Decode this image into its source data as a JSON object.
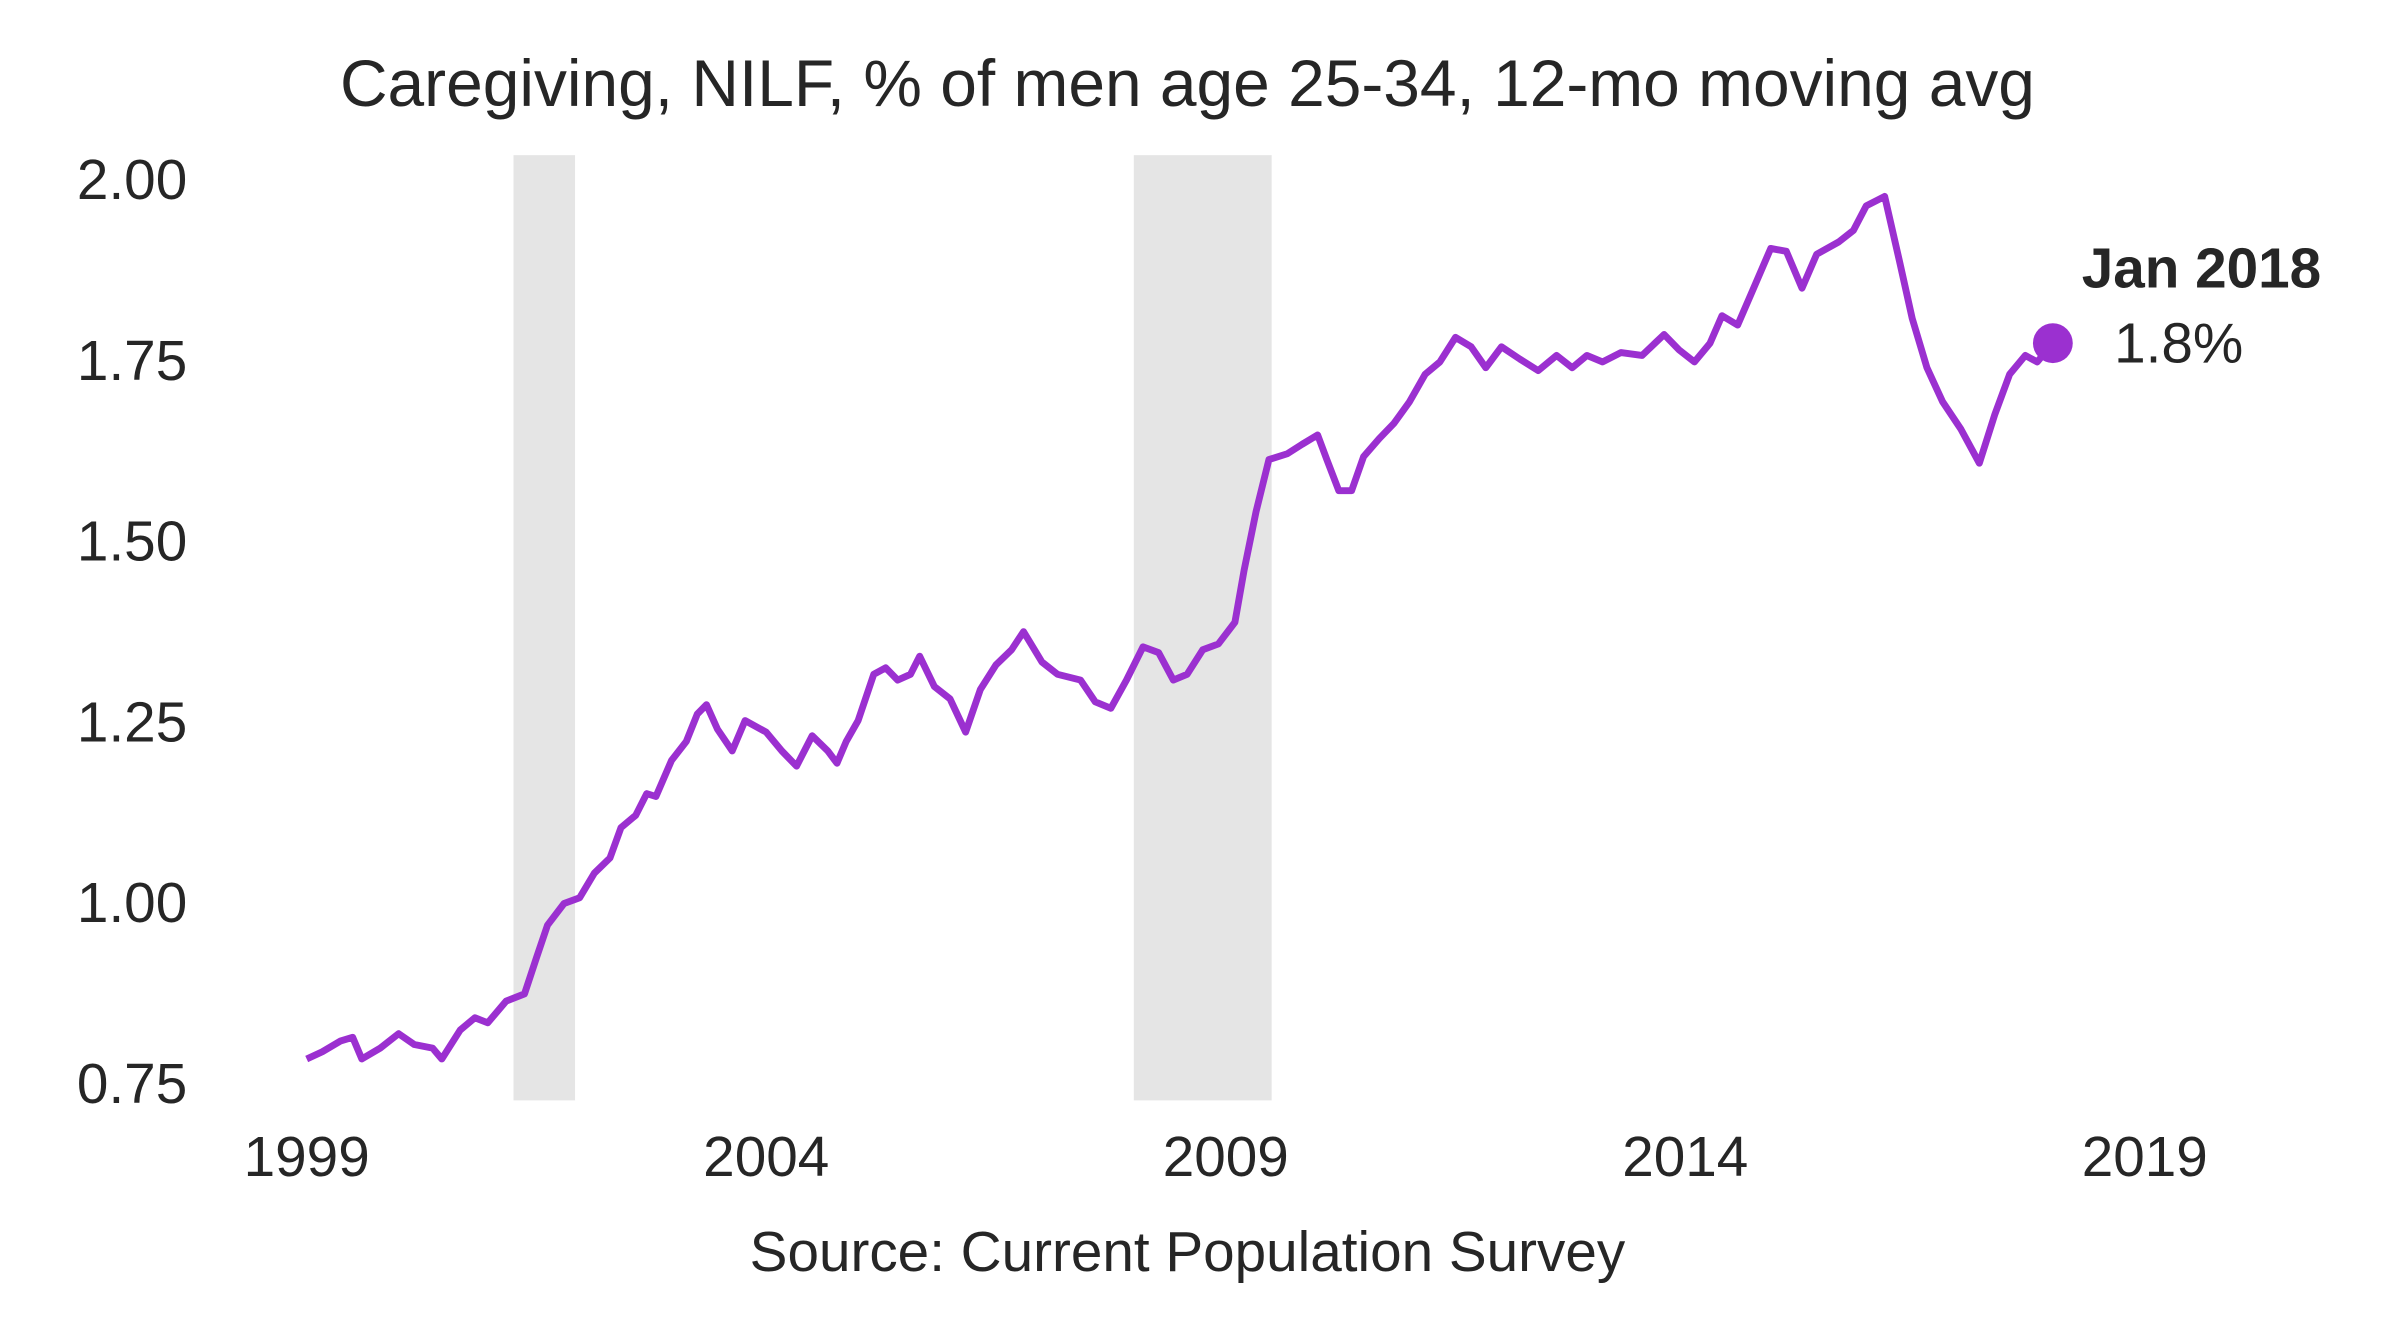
{
  "chart_data": {
    "type": "line",
    "title": "Caregiving, NILF, % of men age 25-34, 12-mo moving avg",
    "x_label": "Source: Current Population Survey",
    "color": "#9b30d0",
    "shade_color": "#e5e5e5",
    "shaded_regions": [
      [
        2001.25,
        2001.92
      ],
      [
        2008.0,
        2009.5
      ]
    ],
    "xlim": [
      1998.0,
      2021.0
    ],
    "xticks": [
      1999,
      2004,
      2009,
      2014,
      2019
    ],
    "ylim": [
      0.72,
      2.04
    ],
    "yticks": [
      {
        "value": 0.75,
        "label": "0.75"
      },
      {
        "value": 1.0,
        "label": "1.00"
      },
      {
        "value": 1.25,
        "label": "1.25"
      },
      {
        "value": 1.5,
        "label": "1.50"
      },
      {
        "value": 1.75,
        "label": "1.75"
      },
      {
        "value": 2.0,
        "label": "2.00"
      }
    ],
    "grid": false,
    "x": [
      1999.0,
      1999.17,
      1999.37,
      1999.5,
      1999.6,
      1999.8,
      2000.0,
      2000.17,
      2000.37,
      2000.47,
      2000.67,
      2000.83,
      2000.97,
      2001.17,
      2001.37,
      2001.5,
      2001.62,
      2001.8,
      2001.97,
      2002.13,
      2002.3,
      2002.42,
      2002.58,
      2002.7,
      2002.8,
      2002.97,
      2003.13,
      2003.25,
      2003.35,
      2003.47,
      2003.63,
      2003.77,
      2004.0,
      2004.17,
      2004.33,
      2004.5,
      2004.67,
      2004.77,
      2004.87,
      2005.0,
      2005.17,
      2005.3,
      2005.43,
      2005.57,
      2005.67,
      2005.83,
      2006.0,
      2006.17,
      2006.33,
      2006.5,
      2006.67,
      2006.8,
      2007.0,
      2007.17,
      2007.42,
      2007.58,
      2007.75,
      2007.92,
      2008.1,
      2008.27,
      2008.43,
      2008.58,
      2008.75,
      2008.92,
      2009.1,
      2009.2,
      2009.33,
      2009.47,
      2009.67,
      2009.83,
      2010.0,
      2010.1,
      2010.23,
      2010.37,
      2010.5,
      2010.67,
      2010.83,
      2011.0,
      2011.17,
      2011.33,
      2011.5,
      2011.67,
      2011.83,
      2012.0,
      2012.2,
      2012.4,
      2012.6,
      2012.77,
      2012.93,
      2013.1,
      2013.3,
      2013.53,
      2013.77,
      2013.93,
      2014.1,
      2014.27,
      2014.4,
      2014.57,
      2014.73,
      2014.93,
      2015.1,
      2015.27,
      2015.43,
      2015.67,
      2015.83,
      2015.97,
      2016.17,
      2016.33,
      2016.47,
      2016.63,
      2016.8,
      2017.0,
      2017.2,
      2017.37,
      2017.53,
      2017.7,
      2017.83,
      2018.0
    ],
    "values": [
      0.79,
      0.8,
      0.815,
      0.82,
      0.79,
      0.805,
      0.825,
      0.81,
      0.805,
      0.79,
      0.83,
      0.847,
      0.84,
      0.87,
      0.88,
      0.93,
      0.975,
      1.005,
      1.013,
      1.047,
      1.068,
      1.11,
      1.127,
      1.157,
      1.153,
      1.203,
      1.229,
      1.267,
      1.28,
      1.246,
      1.216,
      1.258,
      1.242,
      1.216,
      1.195,
      1.237,
      1.216,
      1.199,
      1.229,
      1.258,
      1.322,
      1.331,
      1.314,
      1.322,
      1.347,
      1.305,
      1.288,
      1.242,
      1.301,
      1.335,
      1.356,
      1.381,
      1.339,
      1.322,
      1.314,
      1.284,
      1.275,
      1.314,
      1.36,
      1.352,
      1.314,
      1.322,
      1.356,
      1.364,
      1.394,
      1.466,
      1.547,
      1.619,
      1.627,
      1.64,
      1.653,
      1.619,
      1.576,
      1.576,
      1.623,
      1.648,
      1.669,
      1.699,
      1.737,
      1.754,
      1.788,
      1.775,
      1.746,
      1.775,
      1.758,
      1.742,
      1.763,
      1.746,
      1.763,
      1.754,
      1.767,
      1.763,
      1.792,
      1.771,
      1.754,
      1.78,
      1.818,
      1.805,
      1.852,
      1.911,
      1.907,
      1.856,
      1.903,
      1.92,
      1.936,
      1.97,
      1.983,
      1.894,
      1.814,
      1.746,
      1.699,
      1.661,
      1.614,
      1.682,
      1.737,
      1.763,
      1.754,
      1.78
    ],
    "annotation": {
      "label": "Jan 2018",
      "x": 2018.0,
      "value": 1.78,
      "value_label": "1.8%"
    }
  }
}
